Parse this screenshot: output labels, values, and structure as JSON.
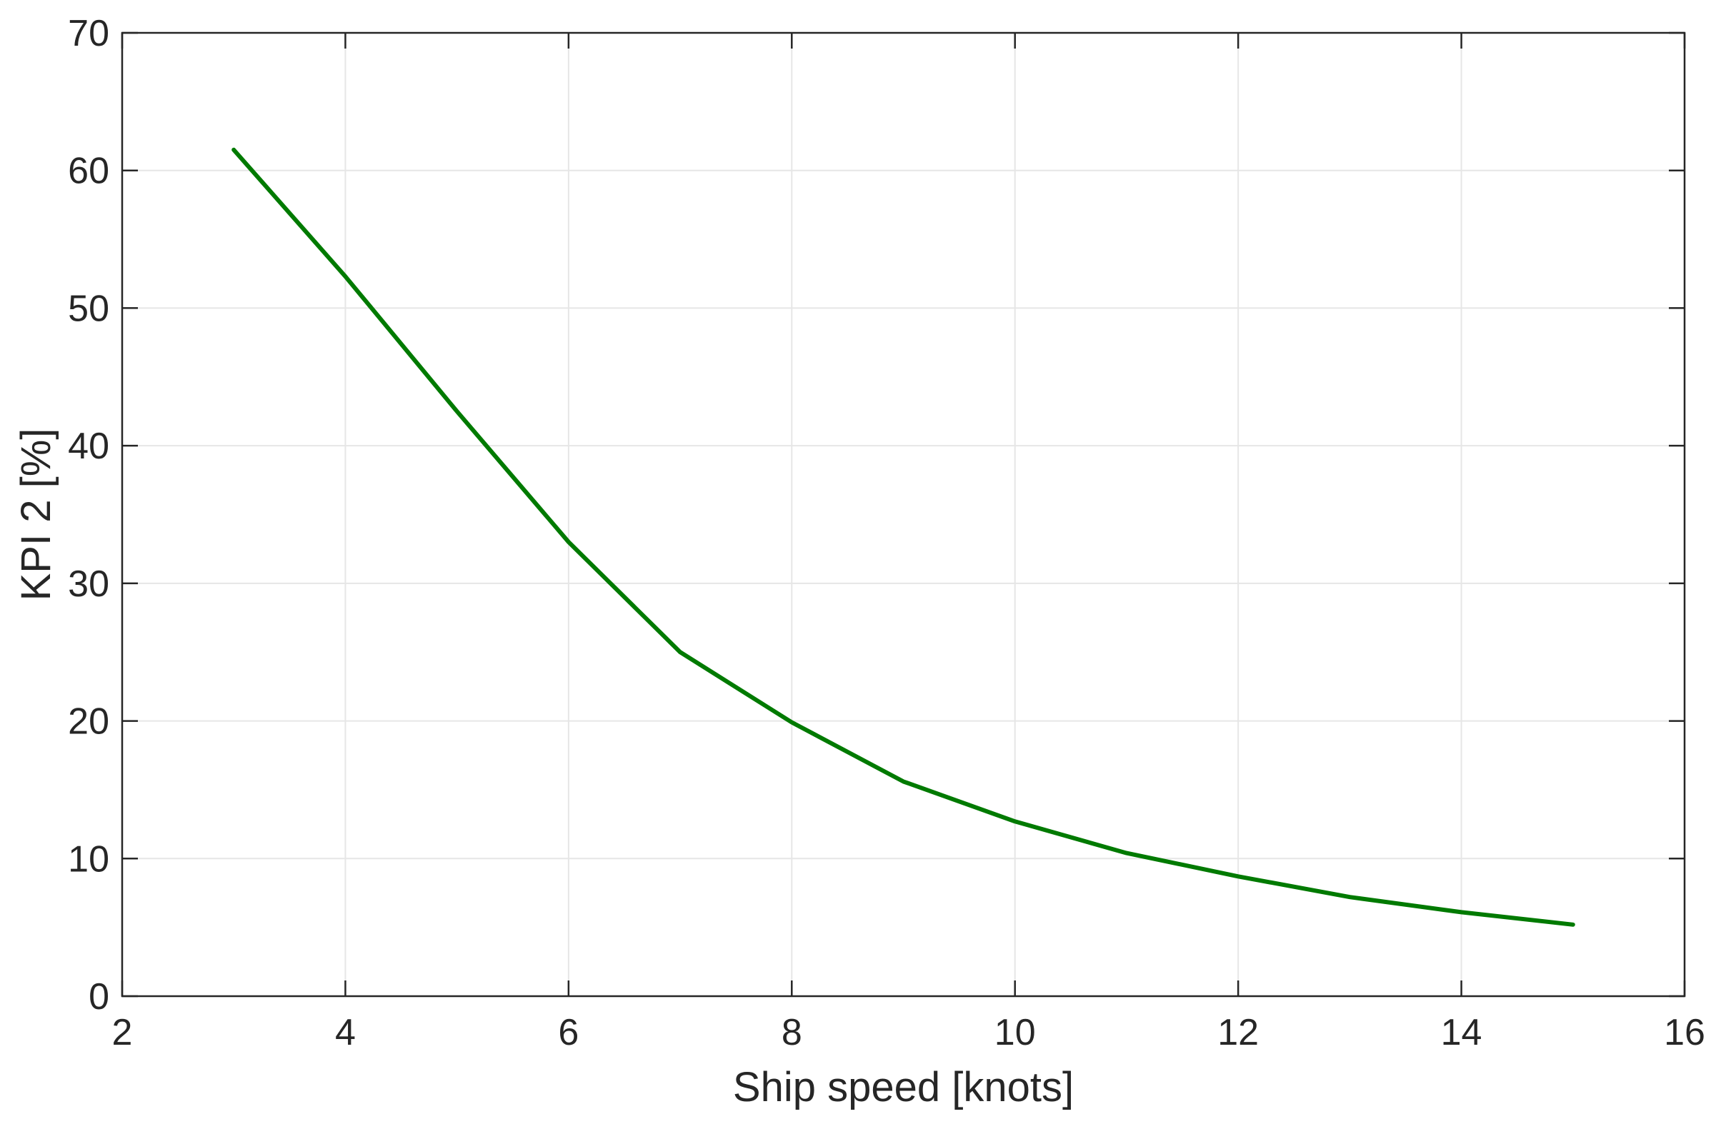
{
  "chart_data": {
    "type": "line",
    "title": "",
    "xlabel": "Ship speed [knots]",
    "ylabel": "KPI 2 [%]",
    "xlim": [
      2,
      16
    ],
    "ylim": [
      0,
      70
    ],
    "xticks": [
      2,
      4,
      6,
      8,
      10,
      12,
      14,
      16
    ],
    "yticks": [
      0,
      10,
      20,
      30,
      40,
      50,
      60,
      70
    ],
    "xtick_labels": [
      "2",
      "4",
      "6",
      "8",
      "10",
      "12",
      "14",
      "16"
    ],
    "ytick_labels": [
      "0",
      "10",
      "20",
      "30",
      "40",
      "50",
      "60",
      "70"
    ],
    "grid": true,
    "box": true,
    "series": [
      {
        "color": "#007a00",
        "x": [
          3,
          4,
          5,
          6,
          7,
          8,
          9,
          10,
          11,
          12,
          13,
          14,
          15
        ],
        "y": [
          61.5,
          52.3,
          42.5,
          33.0,
          25.0,
          19.9,
          15.6,
          12.7,
          10.4,
          8.7,
          7.2,
          6.1,
          5.2
        ]
      }
    ]
  }
}
